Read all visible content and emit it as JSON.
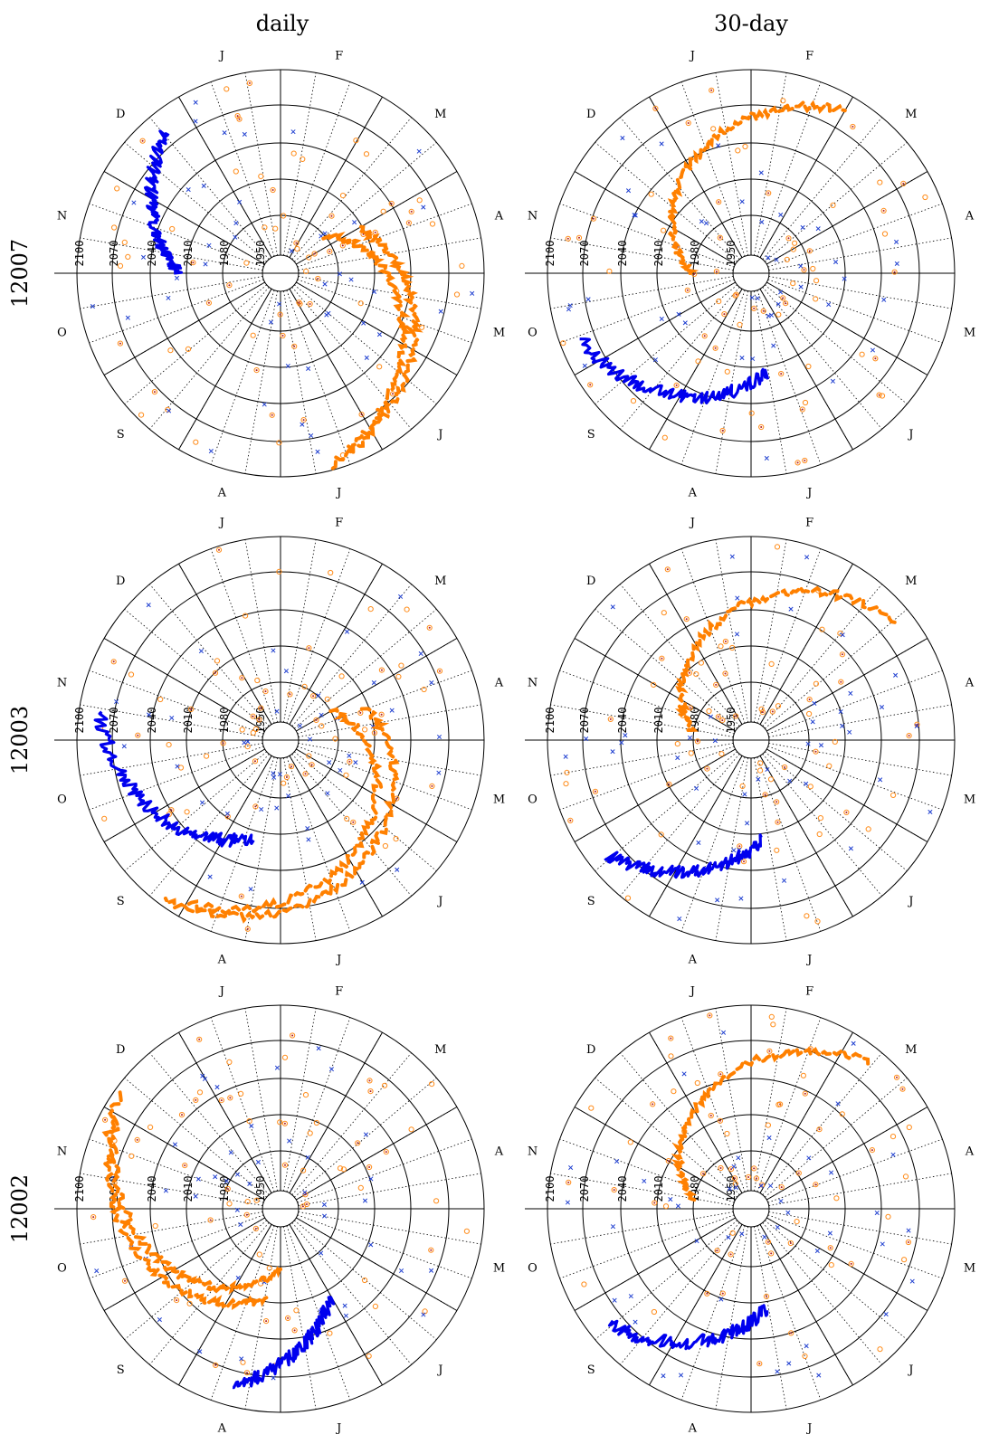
{
  "column_titles": [
    "daily",
    "30-day"
  ],
  "row_labels": [
    "12007",
    "12003",
    "12002"
  ],
  "month_labels": [
    "J",
    "F",
    "M",
    "A",
    "M",
    "J",
    "J",
    "A",
    "S",
    "O",
    "N",
    "D"
  ],
  "ring_labels": [
    "1950",
    "1980",
    "2010",
    "2040",
    "2070",
    "2100"
  ],
  "colors": {
    "observed": "#0000ee",
    "projected": "#ff8000",
    "x_markers": "#1f3fd0",
    "circle_markers": "#ff8c1a",
    "dots": "#b02020",
    "grid": "#000000"
  },
  "chart_data": {
    "type": "polar-spiral",
    "radial_axis": "year",
    "angular_axis": "month",
    "radial_range": [
      1920,
      2100
    ],
    "panels": [
      {
        "row": "12007",
        "column": "daily",
        "observed_months": [
          9.5,
          11.2
        ],
        "projected_months": [
          2.2,
          5.8
        ]
      },
      {
        "row": "12007",
        "column": "30-day",
        "observed_months": [
          6.2,
          8.8
        ],
        "projected_months": [
          9.5,
          13.5
        ]
      },
      {
        "row": "12003",
        "column": "daily",
        "observed_months": [
          7.0,
          9.8
        ],
        "projected_months": [
          2.5,
          7.5
        ]
      },
      {
        "row": "12003",
        "column": "30-day",
        "observed_months": [
          6.3,
          8.2
        ],
        "projected_months": [
          9.8,
          14.2
        ]
      },
      {
        "row": "12002",
        "column": "daily",
        "observed_months": [
          5.5,
          7.0
        ],
        "projected_months": [
          6.5,
          10.5
        ]
      },
      {
        "row": "12002",
        "column": "30-day",
        "observed_months": [
          6.2,
          8.2
        ],
        "projected_months": [
          9.8,
          13.8
        ]
      }
    ]
  }
}
